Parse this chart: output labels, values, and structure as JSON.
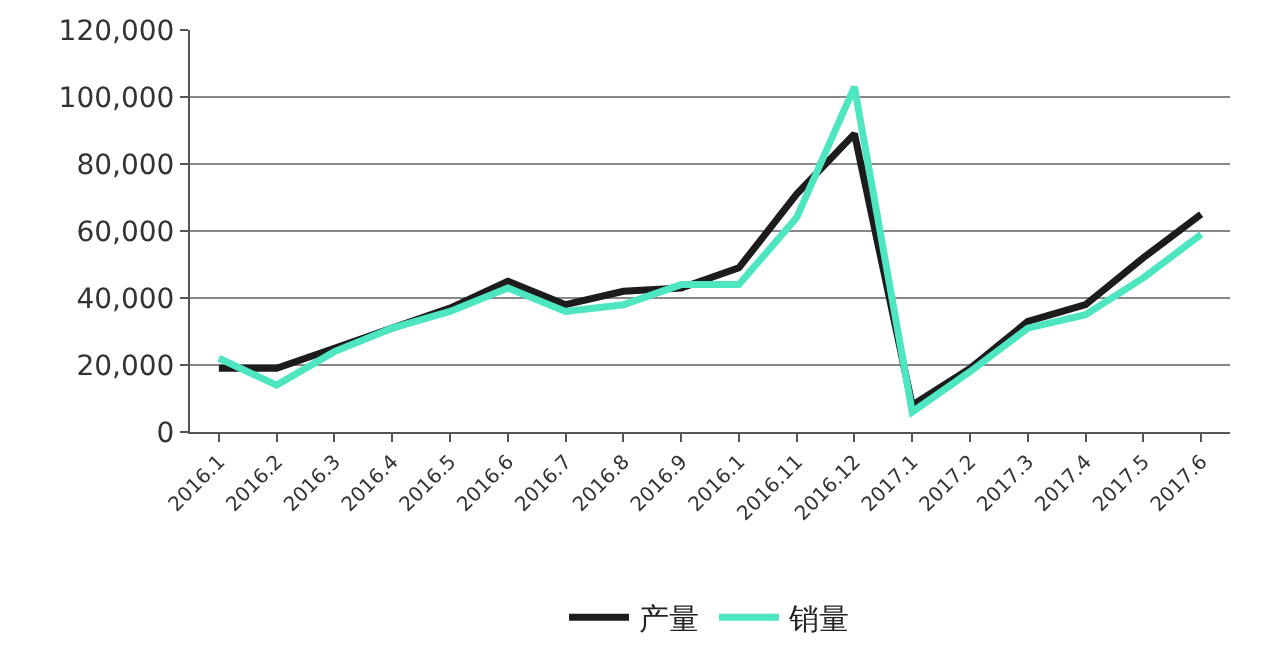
{
  "chart_data": {
    "type": "line",
    "categories": [
      "2016.1",
      "2016.2",
      "2016.3",
      "2016.4",
      "2016.5",
      "2016.6",
      "2016.7",
      "2016.8",
      "2016.9",
      "2016.1",
      "2016.11",
      "2016.12",
      "2017.1",
      "2017.2",
      "2017.3",
      "2017.4",
      "2017.5",
      "2017.6"
    ],
    "series": [
      {
        "name": "产量",
        "color": "#1c1c1c",
        "values": [
          19000,
          19000,
          25000,
          31000,
          37000,
          45000,
          38000,
          42000,
          43000,
          49000,
          71000,
          89000,
          8000,
          19000,
          33000,
          38000,
          52000,
          65000
        ]
      },
      {
        "name": "销量",
        "color": "#4ee6c0",
        "values": [
          22000,
          14000,
          24000,
          31000,
          36000,
          43000,
          36000,
          38000,
          44000,
          44000,
          64000,
          103000,
          6000,
          18000,
          31000,
          35000,
          46000,
          59000
        ]
      }
    ],
    "ylim": [
      0,
      120000
    ],
    "yticks": [
      {
        "value": 0,
        "label": "0"
      },
      {
        "value": 20000,
        "label": "20,000"
      },
      {
        "value": 40000,
        "label": "40,000"
      },
      {
        "value": 60000,
        "label": "60,000"
      },
      {
        "value": 80000,
        "label": "80,000"
      },
      {
        "value": 100000,
        "label": "100,000"
      },
      {
        "value": 120000,
        "label": "120,000"
      }
    ],
    "grid": "y",
    "legend": "bottom",
    "marker": "none",
    "line_style": "solid"
  }
}
